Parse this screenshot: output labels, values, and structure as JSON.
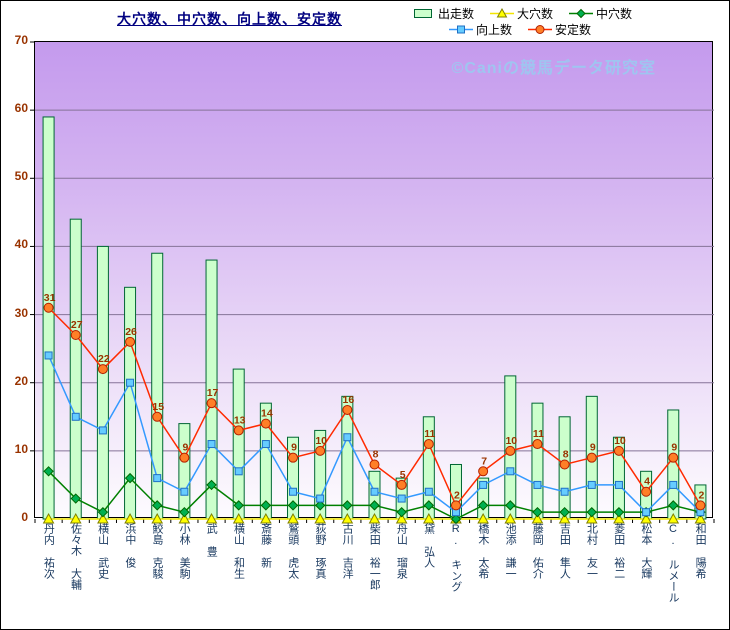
{
  "title": "大穴数、中穴数、向上数、安定数",
  "watermark": "©Caniの競馬データ研究室",
  "legend": {
    "rows": [
      [
        {
          "label": "出走数",
          "marker": "bar"
        },
        {
          "label": "大穴数",
          "marker": "triangle"
        },
        {
          "label": "中穴数",
          "marker": "diamond"
        }
      ],
      [
        {
          "label": "向上数",
          "marker": "square"
        },
        {
          "label": "安定数",
          "marker": "circle"
        }
      ]
    ]
  },
  "colors": {
    "title": "#000080",
    "grid": "#857397",
    "axis": "#000000",
    "y_labels": "#993300",
    "x_labels": "#17375E",
    "data_label": "#993300",
    "watermark": "#9FC5F0",
    "bar_fill": "#CCFFCC",
    "bar_stroke": "#006633",
    "triangle_fill": "#FFFF00",
    "triangle_stroke": "#808000",
    "triangle_line": "#F2E500",
    "diamond_fill": "#00B050",
    "diamond_stroke": "#006600",
    "diamond_line": "#008000",
    "square_fill": "#66CCFF",
    "square_stroke": "#1F6FC4",
    "square_line": "#3399FF",
    "circle_fill": "#FF7F27",
    "circle_stroke": "#B22000",
    "circle_line": "#FF2A00"
  },
  "y_axis": {
    "ticks": [
      "0",
      "10",
      "20",
      "30",
      "40",
      "50",
      "60",
      "70"
    ]
  },
  "chart_data": {
    "type": "bar+line",
    "title": "大穴数、中穴数、向上数、安定数",
    "categories": [
      "丹内 祐次",
      "佐々木 大輔",
      "横山 武史",
      "浜中 俊",
      "鮫島 克駿",
      "小林 美駒",
      "武 豊",
      "横山 和生",
      "斎藤 新",
      "鷲頭 虎太",
      "荻野 琢真",
      "古川 吉洋",
      "柴田 裕一郎",
      "舟山 瑠泉",
      "黛 弘人",
      "R. キング",
      "橋木 太希",
      "池添 謙一",
      "藤岡 佑介",
      "吉田 隼人",
      "北村 友一",
      "菱田 裕二",
      "松本 大輝",
      "C. ルメール",
      "和田 陽希"
    ],
    "series": [
      {
        "name": "出走数",
        "type": "bar",
        "values": [
          59,
          44,
          40,
          34,
          39,
          14,
          38,
          22,
          17,
          12,
          13,
          18,
          7,
          6,
          15,
          8,
          6,
          21,
          17,
          15,
          18,
          12,
          7,
          16,
          5
        ]
      },
      {
        "name": "大穴数",
        "type": "line",
        "marker": "triangle",
        "values": [
          0,
          0,
          0,
          0,
          0,
          0,
          0,
          0,
          0,
          0,
          0,
          0,
          0,
          0,
          0,
          0,
          0,
          0,
          0,
          0,
          0,
          0,
          0,
          0,
          0
        ]
      },
      {
        "name": "中穴数",
        "type": "line",
        "marker": "diamond",
        "values": [
          7,
          3,
          1,
          6,
          2,
          1,
          5,
          2,
          2,
          2,
          2,
          2,
          2,
          1,
          2,
          0,
          2,
          2,
          1,
          1,
          1,
          1,
          1,
          2,
          1
        ]
      },
      {
        "name": "向上数",
        "type": "line",
        "marker": "square",
        "values": [
          24,
          15,
          13,
          20,
          6,
          4,
          11,
          7,
          11,
          4,
          3,
          12,
          4,
          3,
          4,
          1,
          5,
          7,
          5,
          4,
          5,
          5,
          1,
          5,
          1
        ]
      },
      {
        "name": "安定数",
        "type": "line",
        "marker": "circle",
        "show_labels": true,
        "values": [
          31,
          27,
          22,
          26,
          15,
          9,
          17,
          13,
          14,
          9,
          10,
          16,
          8,
          5,
          11,
          2,
          7,
          10,
          11,
          8,
          9,
          10,
          4,
          9,
          2
        ]
      }
    ],
    "ylim": [
      0,
      70
    ],
    "ytick_step": 10,
    "grid": true,
    "legend_position": "top-right"
  }
}
